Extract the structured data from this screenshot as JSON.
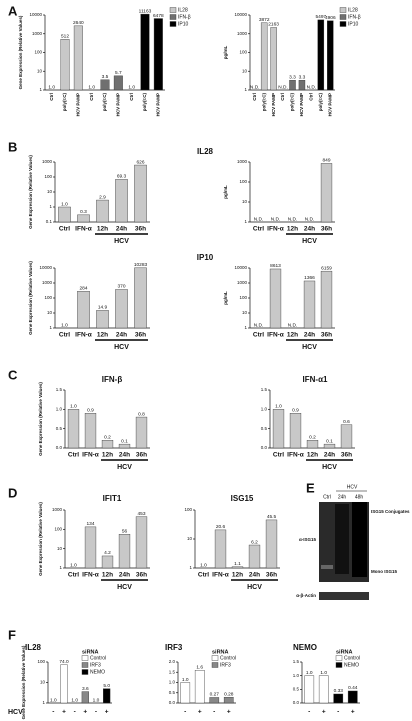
{
  "chart_data": [
    {
      "type": "bar",
      "panel": "A",
      "ylabel": "Gene Expression (Relative Values)",
      "log": true,
      "ylim": [
        1,
        10000
      ],
      "yticks": [
        1,
        10,
        100,
        1000,
        10000
      ],
      "legend": true,
      "categories": [
        "Ctrl",
        "poly(I:C)",
        "HCV PAMP",
        "Ctrl",
        "poly(I:C)",
        "HCV PAMP",
        "Ctrl",
        "poly(I:C)",
        "HCV PAMP"
      ],
      "series": [
        {
          "name": "IL28",
          "color": "#c8c8c8",
          "values": [
            1,
            512,
            2640,
            null,
            null,
            null,
            null,
            null,
            null
          ],
          "value_labels": [
            "1.0",
            "512",
            "2640",
            null,
            null,
            null,
            null,
            null,
            null
          ]
        },
        {
          "name": "IFN-β",
          "color": "#707070",
          "values": [
            null,
            null,
            null,
            1,
            3.5,
            5.7,
            null,
            null,
            null
          ],
          "value_labels": [
            null,
            null,
            null,
            "1.0",
            "3.5",
            "5.7",
            null,
            null,
            null
          ]
        },
        {
          "name": "IP10",
          "color": "#000000",
          "values": [
            null,
            null,
            null,
            null,
            null,
            null,
            1,
            11163,
            6478
          ],
          "value_labels": [
            null,
            null,
            null,
            null,
            null,
            null,
            "1.0",
            "11163",
            "6478"
          ]
        }
      ]
    },
    {
      "type": "bar",
      "ylabel": "pg/mL",
      "log": true,
      "ylim": [
        1,
        10000
      ],
      "yticks": [
        1,
        10,
        100,
        1000,
        10000
      ],
      "legend": true,
      "categories": [
        "Ctrl",
        "poly(I:C)",
        "HCV PAMP",
        "Ctrl",
        "poly(I:C)",
        "HCV PAMP",
        "Ctrl",
        "poly(I:C)",
        "HCV PAMP"
      ],
      "series": [
        {
          "name": "IL28",
          "color": "#c8c8c8",
          "values": [
            null,
            3872,
            2163,
            null,
            null,
            null,
            null,
            null,
            null
          ],
          "value_labels": [
            "N.D.",
            "3872",
            "2163",
            null,
            null,
            null,
            null,
            null,
            null
          ]
        },
        {
          "name": "IFN-β",
          "color": "#707070",
          "values": [
            null,
            null,
            null,
            null,
            3.3,
            3.3,
            null,
            null,
            null
          ],
          "value_labels": [
            null,
            null,
            null,
            "N.D.",
            "3.3",
            "3.3",
            null,
            null,
            null
          ]
        },
        {
          "name": "IP10",
          "color": "#000000",
          "values": [
            null,
            null,
            null,
            null,
            null,
            null,
            null,
            5497,
            4906
          ],
          "value_labels": [
            null,
            null,
            null,
            null,
            null,
            null,
            "N.D.",
            "5497",
            "4906"
          ]
        }
      ]
    },
    {
      "type": "bar",
      "panel": "B",
      "title": "IL28",
      "ylabel": "Gene Expression (Relative Values)",
      "log": true,
      "ylim": [
        0.1,
        1000
      ],
      "yticks": [
        0.1,
        1,
        10,
        100,
        1000
      ],
      "group_label": "HCV",
      "categories": [
        "Ctrl",
        "IFN-α",
        "12h",
        "24h",
        "36h"
      ],
      "color": "#c8c8c8",
      "values": [
        1,
        0.3,
        2.9,
        69.3,
        626
      ],
      "value_labels": [
        "1.0",
        "0.3",
        "2.9",
        "69.3",
        "626"
      ]
    },
    {
      "type": "bar",
      "ylabel": "pg/mL",
      "log": true,
      "ylim": [
        1,
        1000
      ],
      "yticks": [
        1,
        10,
        100,
        1000
      ],
      "group_label": "HCV",
      "categories": [
        "Ctrl",
        "IFN-α",
        "12h",
        "24h",
        "36h"
      ],
      "color": "#c8c8c8",
      "values": [
        null,
        null,
        null,
        null,
        849
      ],
      "value_labels": [
        "N.D.",
        "N.D.",
        "N.D.",
        "N.D.",
        "849"
      ]
    },
    {
      "type": "bar",
      "title": "IP10",
      "ylabel": "Gene Expression (Relative Values)",
      "log": true,
      "ylim": [
        1,
        10000
      ],
      "yticks": [
        1,
        10,
        100,
        1000,
        10000
      ],
      "group_label": "HCV",
      "categories": [
        "Ctrl",
        "IFN-α",
        "12h",
        "24h",
        "36h"
      ],
      "color": "#c8c8c8",
      "values": [
        1,
        284,
        14.9,
        370,
        10283
      ],
      "value_labels": [
        "1.0",
        "284",
        "14.9",
        "370",
        "10283"
      ]
    },
    {
      "type": "bar",
      "ylabel": "pg/mL",
      "log": true,
      "ylim": [
        1,
        10000
      ],
      "yticks": [
        1,
        10,
        100,
        1000,
        10000
      ],
      "group_label": "HCV",
      "categories": [
        "Ctrl",
        "IFN-α",
        "12h",
        "24h",
        "36h"
      ],
      "color": "#c8c8c8",
      "values": [
        null,
        8613,
        null,
        1366,
        6159
      ],
      "value_labels": [
        "N.D.",
        "8613",
        "N.D.",
        "1366",
        "6159"
      ]
    },
    {
      "type": "bar",
      "panel": "C",
      "title": "IFN-β",
      "ylabel": "Gene Expression (Relative Values)",
      "log": false,
      "ylim": [
        0,
        1.5
      ],
      "yticks": [
        {
          "value": 0,
          "label": "0.0"
        },
        0.5,
        {
          "value": 1,
          "label": "1.0"
        },
        1.5
      ],
      "group_label": "HCV",
      "categories": [
        "Ctrl",
        "IFN-α",
        "12h",
        "24h",
        "36h"
      ],
      "color": "#c8c8c8",
      "values": [
        1,
        0.9,
        0.2,
        0.1,
        0.8
      ],
      "value_labels": [
        "1.0",
        "0.9",
        "0.2",
        "0.1",
        "0.8"
      ]
    },
    {
      "type": "bar",
      "title": "IFN-α1",
      "log": false,
      "ylim": [
        0,
        1.5
      ],
      "yticks": [
        {
          "value": 0,
          "label": "0.0"
        },
        0.5,
        {
          "value": 1,
          "label": "1.0"
        },
        1.5
      ],
      "group_label": "HCV",
      "categories": [
        "Ctrl",
        "IFN-α",
        "12h",
        "24h",
        "36h"
      ],
      "color": "#c8c8c8",
      "values": [
        1,
        0.9,
        0.2,
        0.1,
        0.6
      ],
      "value_labels": [
        "1.0",
        "0.9",
        "0.2",
        "0.1",
        "0.6"
      ]
    },
    {
      "type": "bar",
      "panel": "D",
      "title": "IFIT1",
      "ylabel": "Gene Expression (Relative Values)",
      "log": true,
      "ylim": [
        1,
        1000
      ],
      "yticks": [
        1,
        10,
        100,
        1000
      ],
      "group_label": "HCV",
      "categories": [
        "Ctrl",
        "IFN-α",
        "12h",
        "24h",
        "36h"
      ],
      "color": "#c8c8c8",
      "values": [
        1,
        134,
        4.2,
        56,
        453
      ],
      "value_labels": [
        "1.0",
        "134",
        "4.2",
        "56",
        "453"
      ]
    },
    {
      "type": "bar",
      "title": "ISG15",
      "log": true,
      "ylim": [
        1,
        100
      ],
      "yticks": [
        1,
        10,
        100
      ],
      "group_label": "HCV",
      "categories": [
        "Ctrl",
        "IFN-α",
        "12h",
        "24h",
        "36h"
      ],
      "color": "#c8c8c8",
      "values": [
        1,
        20.6,
        1.1,
        6.2,
        45.5
      ],
      "value_labels": [
        "1.0",
        "20.6",
        "1.1",
        "6.2",
        "45.5"
      ]
    },
    {
      "type": "bar",
      "panel": "F",
      "title": "IL28",
      "ylabel": "Gene Expression (Relative Values)",
      "row_label": "HCV",
      "log": true,
      "ylim": [
        1,
        100
      ],
      "yticks": [
        1,
        10,
        100
      ],
      "legend": true,
      "legend_title": "siRNA",
      "categories": [
        "-",
        "+",
        "-",
        "+",
        "-",
        "+"
      ],
      "series": [
        {
          "name": "Control",
          "color": "#ffffff",
          "values": [
            1,
            74,
            null,
            null,
            null,
            null
          ],
          "value_labels": [
            "1.0",
            "74.0",
            null,
            null,
            null,
            null
          ]
        },
        {
          "name": "IRF3",
          "color": "#888888",
          "values": [
            null,
            null,
            1,
            3.6,
            null,
            null
          ],
          "value_labels": [
            null,
            null,
            "1.0",
            "3.6",
            null,
            null
          ]
        },
        {
          "name": "NEMO",
          "color": "#000000",
          "values": [
            null,
            null,
            null,
            null,
            1,
            5
          ],
          "value_labels": [
            null,
            null,
            null,
            null,
            "1.0",
            "5.0"
          ]
        }
      ]
    },
    {
      "type": "bar",
      "title": "IRF3",
      "log": false,
      "ylim": [
        0,
        2
      ],
      "yticks": [
        {
          "value": 0,
          "label": "0.0"
        },
        0.5,
        {
          "value": 1,
          "label": "1.0"
        },
        1.5,
        {
          "value": 2,
          "label": "2.0"
        }
      ],
      "legend": true,
      "legend_title": "siRNA",
      "categories": [
        "-",
        "+",
        "-",
        "+"
      ],
      "series": [
        {
          "name": "Control",
          "color": "#ffffff",
          "values": [
            1,
            1.6,
            null,
            null
          ],
          "value_labels": [
            "1.0",
            "1.6",
            null,
            null
          ]
        },
        {
          "name": "IRF3",
          "color": "#888888",
          "values": [
            null,
            null,
            0.27,
            0.28
          ],
          "value_labels": [
            null,
            null,
            "0.27",
            "0.28"
          ]
        }
      ]
    },
    {
      "type": "bar",
      "title": "NEMO",
      "log": false,
      "ylim": [
        0,
        1.5
      ],
      "yticks": [
        {
          "value": 0,
          "label": "0.0"
        },
        0.5,
        {
          "value": 1,
          "label": "1.0"
        },
        1.5
      ],
      "legend": true,
      "legend_title": "siRNA",
      "categories": [
        "-",
        "+",
        "-",
        "+"
      ],
      "series": [
        {
          "name": "Control",
          "color": "#ffffff",
          "values": [
            1,
            1,
            null,
            null
          ],
          "value_labels": [
            "1.0",
            "1.0",
            null,
            null
          ]
        },
        {
          "name": "NEMO",
          "color": "#000000",
          "values": [
            null,
            null,
            0.33,
            0.44
          ],
          "value_labels": [
            null,
            null,
            "0.33",
            "0.44"
          ]
        }
      ]
    }
  ],
  "blot": {
    "panel": "E",
    "group_label": "HCV",
    "lanes": [
      "Ctrl",
      "24h",
      "48h"
    ],
    "labels": [
      "ISG15 Conjugates",
      "α-ISG15",
      "Mono ISG15",
      "α-β-Actin"
    ]
  }
}
